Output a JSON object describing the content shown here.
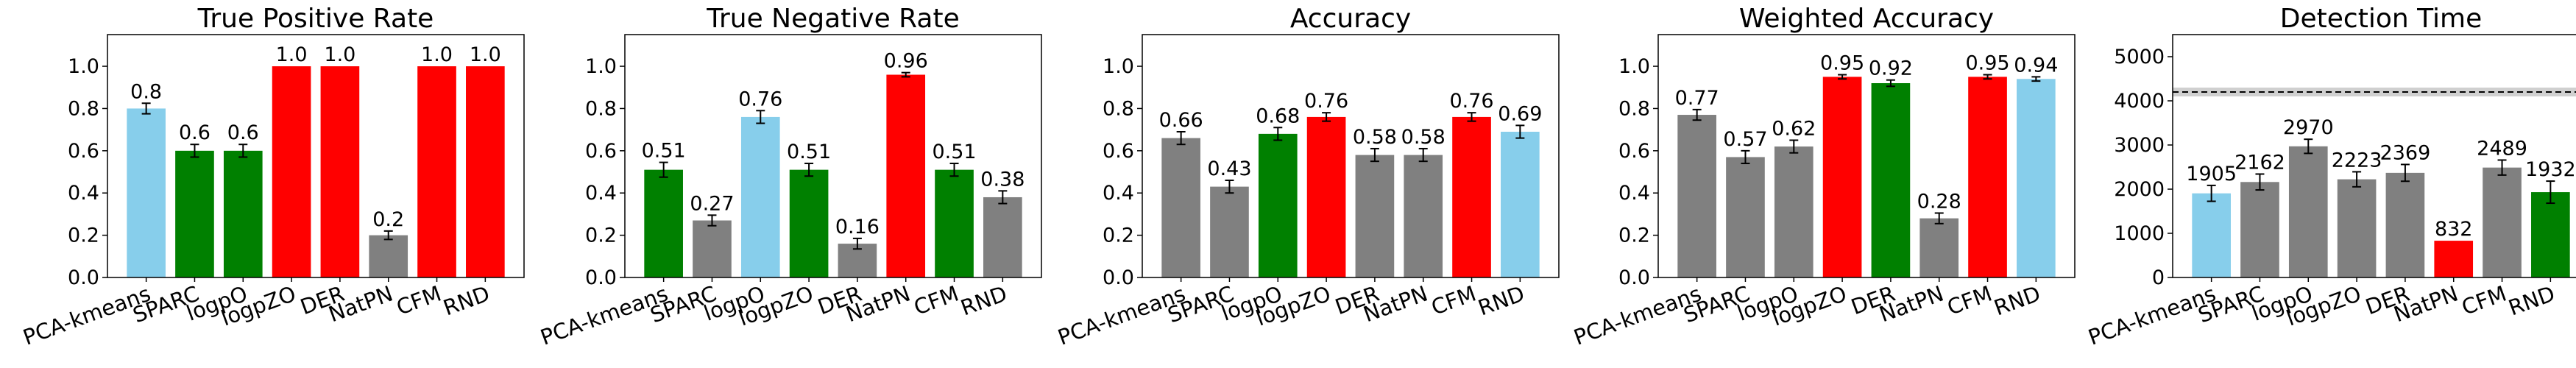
{
  "chart_data": [
    {
      "type": "bar",
      "title": "True Positive Rate",
      "categories": [
        "PCA-kmeans",
        "SPARC",
        "logpO",
        "logpZO",
        "DER",
        "NatPN",
        "CFM",
        "RND"
      ],
      "values": [
        0.8,
        0.6,
        0.6,
        1.0,
        1.0,
        0.2,
        1.0,
        1.0
      ],
      "errors": [
        0.025,
        0.03,
        0.03,
        0.0,
        0.0,
        0.02,
        0.0,
        0.0
      ],
      "data_labels": [
        "0.8",
        "0.6",
        "0.6",
        "1.0",
        "1.0",
        "0.2",
        "1.0",
        "1.0"
      ],
      "colors": [
        "#87ceeb",
        "#008000",
        "#008000",
        "#ff0000",
        "#ff0000",
        "#808080",
        "#ff0000",
        "#ff0000"
      ],
      "ylim": [
        0,
        1.15
      ],
      "yticks": [
        0.0,
        0.2,
        0.4,
        0.6,
        0.8,
        1.0
      ],
      "ytick_labels": [
        "0.0",
        "0.2",
        "0.4",
        "0.6",
        "0.8",
        "1.0"
      ],
      "xlabel": "",
      "ylabel": ""
    },
    {
      "type": "bar",
      "title": "True Negative Rate",
      "categories": [
        "PCA-kmeans",
        "SPARC",
        "logpO",
        "logpZO",
        "DER",
        "NatPN",
        "CFM",
        "RND"
      ],
      "values": [
        0.51,
        0.27,
        0.76,
        0.51,
        0.16,
        0.96,
        0.51,
        0.38
      ],
      "errors": [
        0.035,
        0.025,
        0.03,
        0.03,
        0.025,
        0.01,
        0.03,
        0.03
      ],
      "data_labels": [
        "0.51",
        "0.27",
        "0.76",
        "0.51",
        "0.16",
        "0.96",
        "0.51",
        "0.38"
      ],
      "colors": [
        "#008000",
        "#808080",
        "#87ceeb",
        "#008000",
        "#808080",
        "#ff0000",
        "#008000",
        "#808080"
      ],
      "ylim": [
        0,
        1.15
      ],
      "yticks": [
        0.0,
        0.2,
        0.4,
        0.6,
        0.8,
        1.0
      ],
      "ytick_labels": [
        "0.0",
        "0.2",
        "0.4",
        "0.6",
        "0.8",
        "1.0"
      ],
      "xlabel": "",
      "ylabel": ""
    },
    {
      "type": "bar",
      "title": "Accuracy",
      "categories": [
        "PCA-kmeans",
        "SPARC",
        "logpO",
        "logpZO",
        "DER",
        "NatPN",
        "CFM",
        "RND"
      ],
      "values": [
        0.66,
        0.43,
        0.68,
        0.76,
        0.58,
        0.58,
        0.76,
        0.69
      ],
      "errors": [
        0.03,
        0.03,
        0.03,
        0.02,
        0.03,
        0.03,
        0.02,
        0.03
      ],
      "data_labels": [
        "0.66",
        "0.43",
        "0.68",
        "0.76",
        "0.58",
        "0.58",
        "0.76",
        "0.69"
      ],
      "colors": [
        "#808080",
        "#808080",
        "#008000",
        "#ff0000",
        "#808080",
        "#808080",
        "#ff0000",
        "#87ceeb"
      ],
      "ylim": [
        0,
        1.15
      ],
      "yticks": [
        0.0,
        0.2,
        0.4,
        0.6,
        0.8,
        1.0
      ],
      "ytick_labels": [
        "0.0",
        "0.2",
        "0.4",
        "0.6",
        "0.8",
        "1.0"
      ],
      "xlabel": "",
      "ylabel": ""
    },
    {
      "type": "bar",
      "title": "Weighted Accuracy",
      "categories": [
        "PCA-kmeans",
        "SPARC",
        "logpO",
        "logpZO",
        "DER",
        "NatPN",
        "CFM",
        "RND"
      ],
      "values": [
        0.77,
        0.57,
        0.62,
        0.95,
        0.92,
        0.28,
        0.95,
        0.94
      ],
      "errors": [
        0.025,
        0.03,
        0.03,
        0.01,
        0.015,
        0.025,
        0.01,
        0.01
      ],
      "data_labels": [
        "0.77",
        "0.57",
        "0.62",
        "0.95",
        "0.92",
        "0.28",
        "0.95",
        "0.94"
      ],
      "colors": [
        "#808080",
        "#808080",
        "#808080",
        "#ff0000",
        "#008000",
        "#808080",
        "#ff0000",
        "#87ceeb"
      ],
      "ylim": [
        0,
        1.15
      ],
      "yticks": [
        0.0,
        0.2,
        0.4,
        0.6,
        0.8,
        1.0
      ],
      "ytick_labels": [
        "0.0",
        "0.2",
        "0.4",
        "0.6",
        "0.8",
        "1.0"
      ],
      "xlabel": "",
      "ylabel": ""
    },
    {
      "type": "bar",
      "title": "Detection Time",
      "categories": [
        "PCA-kmeans",
        "SPARC",
        "logpO",
        "logpZO",
        "DER",
        "NatPN",
        "CFM",
        "RND"
      ],
      "values": [
        1905,
        2162,
        2970,
        2223,
        2369,
        832,
        2489,
        1932
      ],
      "errors": [
        180,
        180,
        160,
        170,
        190,
        0,
        170,
        250
      ],
      "data_labels": [
        "1905",
        "2162",
        "2970",
        "2223",
        "2369",
        "832",
        "2489",
        "1932"
      ],
      "colors": [
        "#87ceeb",
        "#808080",
        "#808080",
        "#808080",
        "#808080",
        "#ff0000",
        "#808080",
        "#008000"
      ],
      "ylim": [
        0,
        5500
      ],
      "yticks": [
        0,
        1000,
        2000,
        3000,
        4000,
        5000
      ],
      "ytick_labels": [
        "0",
        "1000",
        "2000",
        "3000",
        "4000",
        "5000"
      ],
      "reference_line": {
        "value": 4200,
        "band": [
          4100,
          4300
        ],
        "style": "dashed"
      },
      "xlabel": "",
      "ylabel": ""
    }
  ]
}
